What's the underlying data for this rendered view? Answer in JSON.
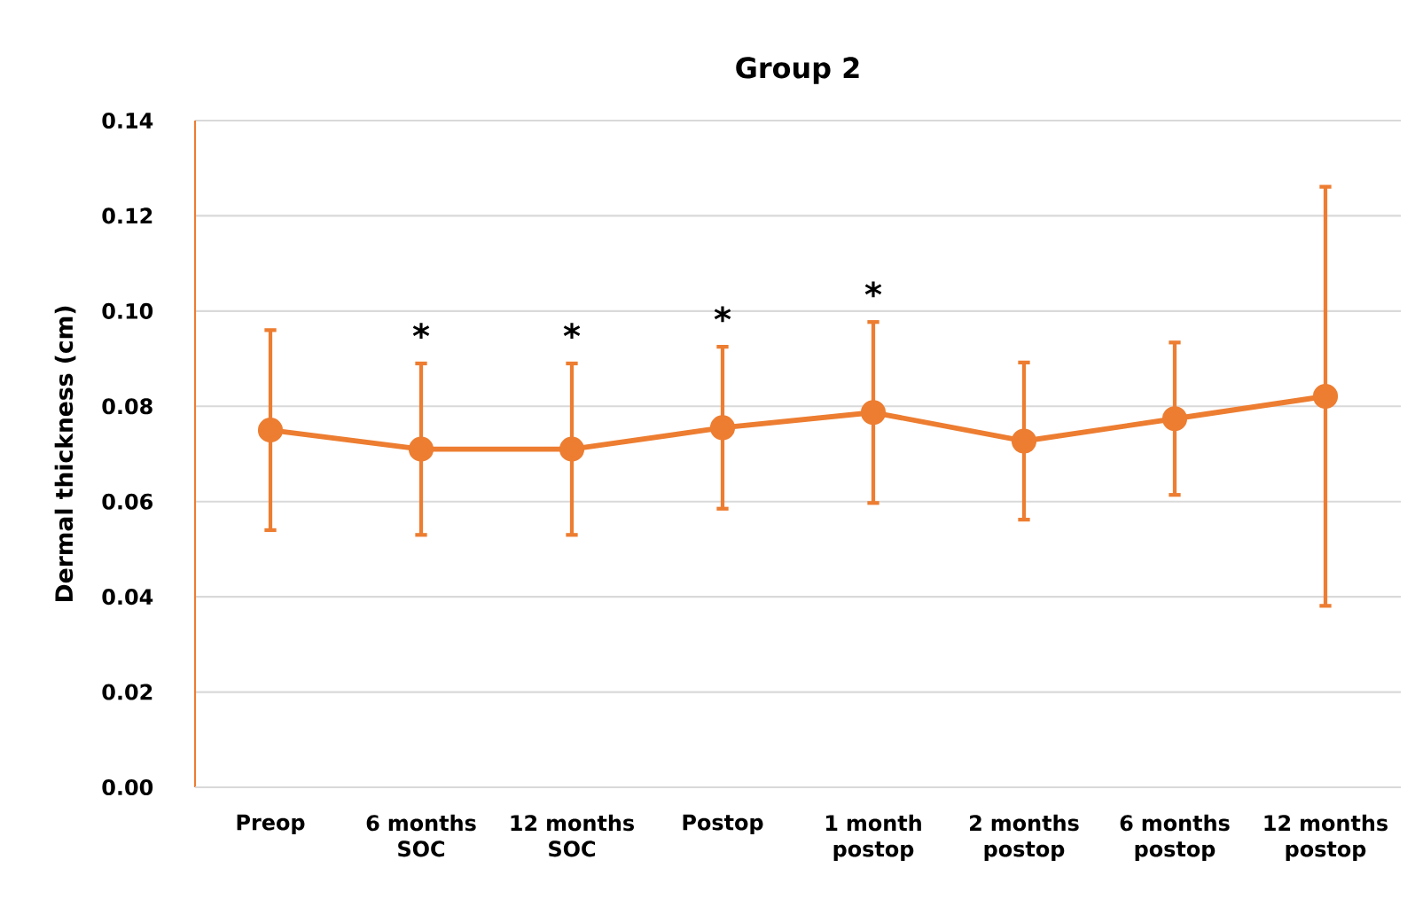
{
  "chart_data": {
    "type": "line",
    "title": "Group 2",
    "ylabel": "Dermal thickness (cm)",
    "categories": [
      "Preop",
      "6 months SOC",
      "12 months SOC",
      "Postop",
      "1 month postop",
      "2 months postop",
      "6 months postop",
      "12 months postop"
    ],
    "values": [
      0.075,
      0.071,
      0.071,
      0.0755,
      0.0787,
      0.0727,
      0.0774,
      0.0821
    ],
    "errors": [
      0.021,
      0.018,
      0.018,
      0.017,
      0.019,
      0.0165,
      0.016,
      0.044
    ],
    "color": "#ed7d31",
    "marker": "circle",
    "line_style": "solid",
    "grid": "y",
    "ylim": [
      0,
      0.14
    ],
    "yticks": [
      {
        "value": 0,
        "label": "0.00"
      },
      {
        "value": 0.02,
        "label": "0.02"
      },
      {
        "value": 0.04,
        "label": "0.04"
      },
      {
        "value": 0.06,
        "label": "0.06"
      },
      {
        "value": 0.08,
        "label": "0.08"
      },
      {
        "value": 0.1,
        "label": "0.10"
      },
      {
        "value": 0.12,
        "label": "0.12"
      },
      {
        "value": 0.14,
        "label": "0.14"
      }
    ],
    "annotations": [
      {
        "text": "*",
        "x": "6 months SOC",
        "y": 0.089
      },
      {
        "text": "*",
        "x": "12 months SOC",
        "y": 0.089
      },
      {
        "text": "*",
        "x": "Postop",
        "y": 0.0925
      },
      {
        "text": "*",
        "x": "1 month postop",
        "y": 0.0977
      }
    ]
  }
}
